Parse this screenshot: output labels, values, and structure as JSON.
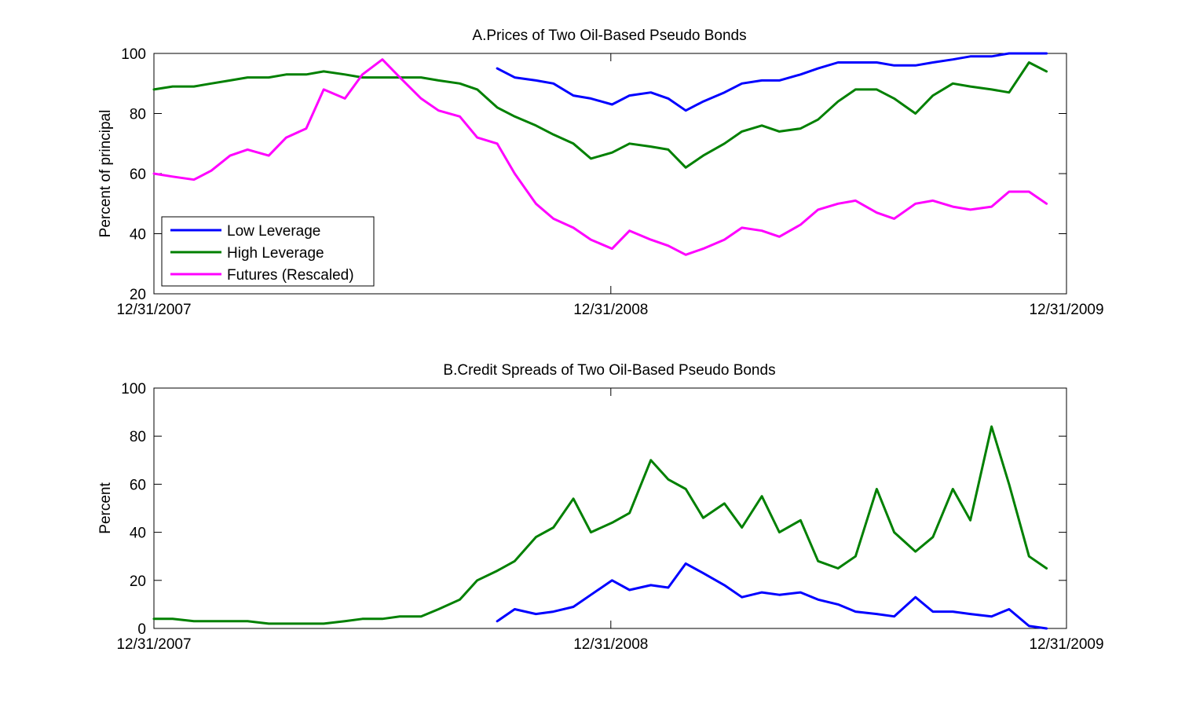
{
  "chart_data": [
    {
      "type": "line",
      "title": "A.Prices of Two Oil-Based Pseudo Bonds",
      "xlabel": "",
      "ylabel": "Percent of principal",
      "xlim": [
        "2007-12-31",
        "2009-12-31"
      ],
      "ylim": [
        20,
        100
      ],
      "x_ticks": [
        "12/31/2007",
        "12/31/2008",
        "12/31/2009"
      ],
      "y_ticks": [
        20,
        40,
        60,
        80,
        100
      ],
      "legend": {
        "placement": "bottom-left",
        "entries": [
          "Low Leverage",
          "High Leverage",
          "Futures (Rescaled)"
        ]
      },
      "series": [
        {
          "name": "Low Leverage",
          "color": "#0000ff",
          "x": [
            "2008-10-01",
            "2008-10-15",
            "2008-11-01",
            "2008-11-15",
            "2008-12-01",
            "2008-12-15",
            "2009-01-01",
            "2009-01-15",
            "2009-02-01",
            "2009-02-15",
            "2009-03-01",
            "2009-03-15",
            "2009-04-01",
            "2009-04-15",
            "2009-05-01",
            "2009-05-15",
            "2009-06-01",
            "2009-06-15",
            "2009-07-01",
            "2009-07-15",
            "2009-08-01",
            "2009-08-15",
            "2009-09-01",
            "2009-09-15",
            "2009-10-01",
            "2009-10-15",
            "2009-11-01",
            "2009-11-15",
            "2009-12-01",
            "2009-12-15"
          ],
          "y": [
            95,
            92,
            91,
            90,
            86,
            85,
            83,
            86,
            87,
            85,
            81,
            84,
            87,
            90,
            91,
            91,
            93,
            95,
            97,
            97,
            97,
            96,
            96,
            97,
            98,
            99,
            99,
            100,
            100,
            100
          ]
        },
        {
          "name": "High Leverage",
          "color": "#008000",
          "x": [
            "2007-12-31",
            "2008-01-15",
            "2008-02-01",
            "2008-02-15",
            "2008-03-01",
            "2008-03-15",
            "2008-04-01",
            "2008-04-15",
            "2008-05-01",
            "2008-05-15",
            "2008-06-01",
            "2008-06-15",
            "2008-07-01",
            "2008-07-15",
            "2008-08-01",
            "2008-08-15",
            "2008-09-01",
            "2008-09-15",
            "2008-10-01",
            "2008-10-15",
            "2008-11-01",
            "2008-11-15",
            "2008-12-01",
            "2008-12-15",
            "2009-01-01",
            "2009-01-15",
            "2009-02-01",
            "2009-02-15",
            "2009-03-01",
            "2009-03-15",
            "2009-04-01",
            "2009-04-15",
            "2009-05-01",
            "2009-05-15",
            "2009-06-01",
            "2009-06-15",
            "2009-07-01",
            "2009-07-15",
            "2009-08-01",
            "2009-08-15",
            "2009-09-01",
            "2009-09-15",
            "2009-10-01",
            "2009-10-15",
            "2009-11-01",
            "2009-11-15",
            "2009-12-01",
            "2009-12-15"
          ],
          "y": [
            88,
            89,
            89,
            90,
            91,
            92,
            92,
            93,
            93,
            94,
            93,
            92,
            92,
            92,
            92,
            91,
            90,
            88,
            82,
            79,
            76,
            73,
            70,
            65,
            67,
            70,
            69,
            68,
            62,
            66,
            70,
            74,
            76,
            74,
            75,
            78,
            84,
            88,
            88,
            85,
            80,
            86,
            90,
            89,
            88,
            87,
            97,
            94
          ]
        },
        {
          "name": "Futures (Rescaled)",
          "color": "#ff00ff",
          "x": [
            "2007-12-31",
            "2008-01-15",
            "2008-02-01",
            "2008-02-15",
            "2008-03-01",
            "2008-03-15",
            "2008-04-01",
            "2008-04-15",
            "2008-05-01",
            "2008-05-15",
            "2008-06-01",
            "2008-06-15",
            "2008-07-01",
            "2008-07-15",
            "2008-08-01",
            "2008-08-15",
            "2008-09-01",
            "2008-09-15",
            "2008-10-01",
            "2008-10-15",
            "2008-11-01",
            "2008-11-15",
            "2008-12-01",
            "2008-12-15",
            "2009-01-01",
            "2009-01-15",
            "2009-02-01",
            "2009-02-15",
            "2009-03-01",
            "2009-03-15",
            "2009-04-01",
            "2009-04-15",
            "2009-05-01",
            "2009-05-15",
            "2009-06-01",
            "2009-06-15",
            "2009-07-01",
            "2009-07-15",
            "2009-08-01",
            "2009-08-15",
            "2009-09-01",
            "2009-09-15",
            "2009-10-01",
            "2009-10-15",
            "2009-11-01",
            "2009-11-15",
            "2009-12-01",
            "2009-12-15"
          ],
          "y": [
            60,
            59,
            58,
            61,
            66,
            68,
            66,
            72,
            75,
            88,
            85,
            93,
            98,
            92,
            85,
            81,
            79,
            72,
            70,
            60,
            50,
            45,
            42,
            38,
            35,
            41,
            38,
            36,
            33,
            35,
            38,
            42,
            41,
            39,
            43,
            48,
            50,
            51,
            47,
            45,
            50,
            51,
            49,
            48,
            49,
            54,
            54,
            50
          ]
        }
      ]
    },
    {
      "type": "line",
      "title": "B.Credit Spreads of Two Oil-Based Pseudo Bonds",
      "xlabel": "",
      "ylabel": "Percent",
      "xlim": [
        "2007-12-31",
        "2009-12-31"
      ],
      "ylim": [
        0,
        100
      ],
      "x_ticks": [
        "12/31/2007",
        "12/31/2008",
        "12/31/2009"
      ],
      "y_ticks": [
        0,
        20,
        40,
        60,
        80,
        100
      ],
      "series": [
        {
          "name": "Low Leverage",
          "color": "#0000ff",
          "x": [
            "2008-10-01",
            "2008-10-15",
            "2008-11-01",
            "2008-11-15",
            "2008-12-01",
            "2008-12-15",
            "2009-01-01",
            "2009-01-15",
            "2009-02-01",
            "2009-02-15",
            "2009-03-01",
            "2009-03-15",
            "2009-04-01",
            "2009-04-15",
            "2009-05-01",
            "2009-05-15",
            "2009-06-01",
            "2009-06-15",
            "2009-07-01",
            "2009-07-15",
            "2009-08-01",
            "2009-08-15",
            "2009-09-01",
            "2009-09-15",
            "2009-10-01",
            "2009-10-15",
            "2009-11-01",
            "2009-11-15",
            "2009-12-01",
            "2009-12-15"
          ],
          "y": [
            3,
            8,
            6,
            7,
            9,
            14,
            20,
            16,
            18,
            17,
            27,
            23,
            18,
            13,
            15,
            14,
            15,
            12,
            10,
            7,
            6,
            5,
            13,
            7,
            7,
            6,
            5,
            8,
            1,
            0
          ]
        },
        {
          "name": "High Leverage",
          "color": "#008000",
          "x": [
            "2007-12-31",
            "2008-01-15",
            "2008-02-01",
            "2008-02-15",
            "2008-03-01",
            "2008-03-15",
            "2008-04-01",
            "2008-04-15",
            "2008-05-01",
            "2008-05-15",
            "2008-06-01",
            "2008-06-15",
            "2008-07-01",
            "2008-07-15",
            "2008-08-01",
            "2008-08-15",
            "2008-09-01",
            "2008-09-15",
            "2008-10-01",
            "2008-10-15",
            "2008-11-01",
            "2008-11-15",
            "2008-12-01",
            "2008-12-15",
            "2009-01-01",
            "2009-01-15",
            "2009-02-01",
            "2009-02-15",
            "2009-03-01",
            "2009-03-15",
            "2009-04-01",
            "2009-04-15",
            "2009-05-01",
            "2009-05-15",
            "2009-06-01",
            "2009-06-15",
            "2009-07-01",
            "2009-07-15",
            "2009-08-01",
            "2009-08-15",
            "2009-09-01",
            "2009-09-15",
            "2009-10-01",
            "2009-10-15",
            "2009-11-01",
            "2009-11-15",
            "2009-12-01",
            "2009-12-15"
          ],
          "y": [
            4,
            4,
            3,
            3,
            3,
            3,
            2,
            2,
            2,
            2,
            3,
            4,
            4,
            5,
            5,
            8,
            12,
            20,
            24,
            28,
            38,
            42,
            54,
            40,
            44,
            48,
            70,
            62,
            58,
            46,
            52,
            42,
            55,
            40,
            45,
            28,
            25,
            30,
            58,
            40,
            32,
            38,
            58,
            45,
            84,
            60,
            30,
            25
          ]
        }
      ]
    }
  ]
}
